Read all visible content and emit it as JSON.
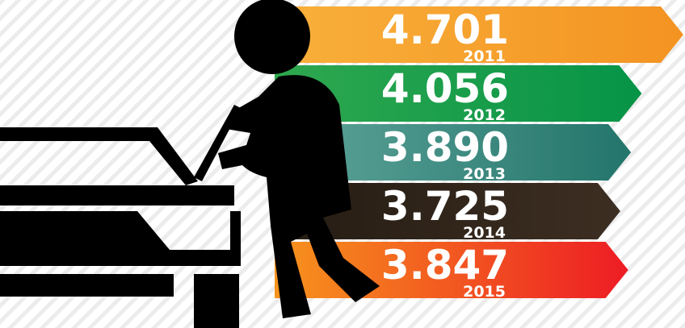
{
  "chart_data": {
    "type": "bar",
    "categories": [
      "2011",
      "2012",
      "2013",
      "2014",
      "2015"
    ],
    "values": [
      4.701,
      4.056,
      3.89,
      3.725,
      3.847
    ],
    "value_labels": [
      "4.701",
      "4.056",
      "3.890",
      "3.725",
      "3.847"
    ],
    "colors": [
      [
        "#f9b03b",
        "#f39322"
      ],
      [
        "#2fa84f",
        "#069447"
      ],
      [
        "#5fa59b",
        "#23756b"
      ],
      [
        "#251c13",
        "#3d2e22"
      ],
      [
        "#f7941d",
        "#ed1c24"
      ]
    ]
  }
}
